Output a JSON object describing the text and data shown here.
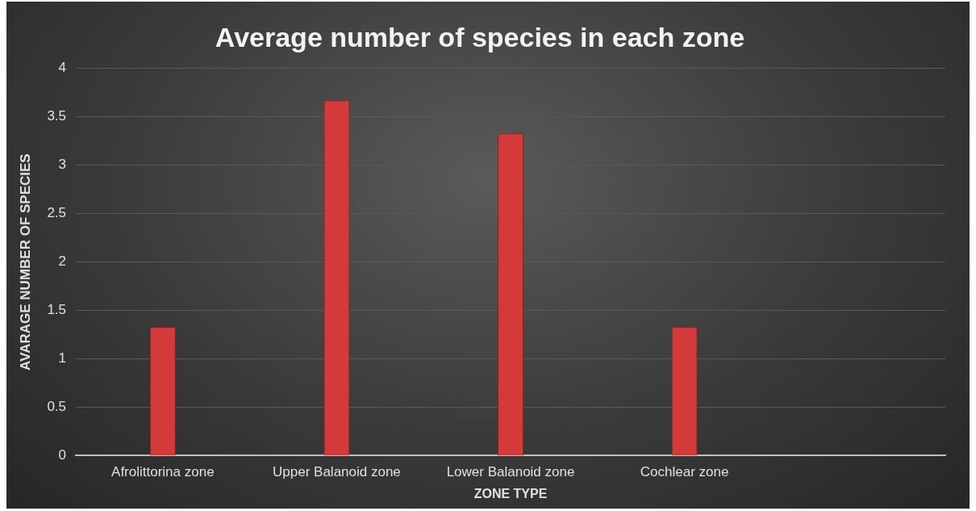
{
  "chart_data": {
    "type": "bar",
    "title": "Average number of species in each zone",
    "xlabel": "ZONE TYPE",
    "ylabel": "AVARAGE NUMBER OF SPECIES",
    "categories": [
      "Afrolittorina zone",
      "Upper Balanoid zone",
      "Lower Balanoid zone",
      "Cochlear zone",
      null
    ],
    "values": [
      1.33,
      3.67,
      3.33,
      1.33,
      null
    ],
    "color": "#d43a3a",
    "ylim": [
      0,
      4
    ],
    "yticks": [
      0,
      0.5,
      1,
      1.5,
      2,
      2.5,
      3,
      3.5,
      4
    ],
    "grid": "y",
    "legend": false
  }
}
